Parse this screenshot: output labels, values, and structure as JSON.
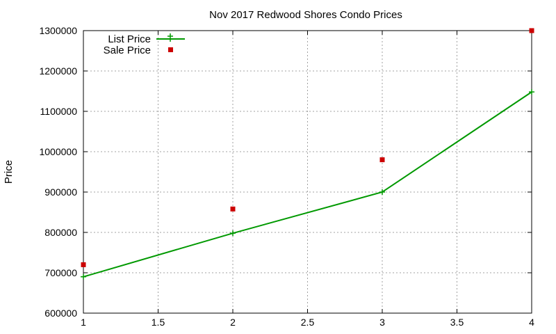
{
  "chart_data": {
    "type": "line",
    "title": "Nov 2017 Redwood Shores Condo Prices",
    "xlabel": "",
    "ylabel": "Price",
    "xlim": [
      1,
      4
    ],
    "ylim": [
      600000,
      1300000
    ],
    "x_ticks": [
      "1",
      "1.5",
      "2",
      "2.5",
      "3",
      "3.5",
      "4"
    ],
    "y_ticks": [
      "600000",
      "700000",
      "800000",
      "900000",
      "1000000",
      "1100000",
      "1200000",
      "1300000"
    ],
    "grid": true,
    "legend_position": "top-left",
    "series": [
      {
        "name": "List Price",
        "style": "line-with-plus-markers",
        "color": "#009900",
        "x": [
          1,
          2,
          3,
          4
        ],
        "y": [
          690000,
          798000,
          900000,
          1148000
        ]
      },
      {
        "name": "Sale Price",
        "style": "square-markers",
        "color": "#cc0000",
        "x": [
          1,
          2,
          3,
          4
        ],
        "y": [
          720000,
          858000,
          980000,
          1300000
        ]
      }
    ]
  }
}
